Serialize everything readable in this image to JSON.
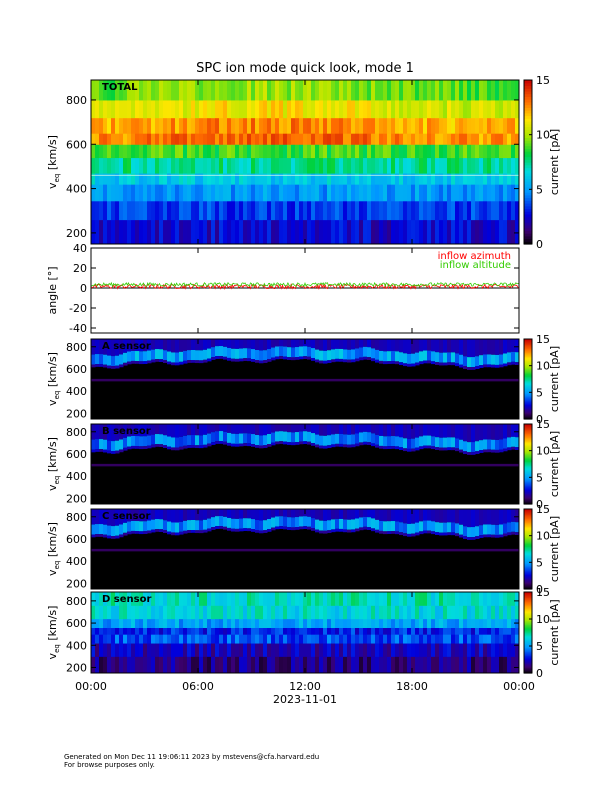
{
  "title": "SPC ion mode quick look, mode 1",
  "chart_data": [
    {
      "type": "heatmap",
      "panel_label": "TOTAL",
      "ylabel_main": "v",
      "ylabel_sub": "eq",
      "ylabel_unit": "[km/s]",
      "ylim": [
        150,
        890
      ],
      "yticks": [
        200,
        400,
        600,
        800
      ],
      "colorbar": {
        "label": "current [pA]",
        "range": [
          0,
          15
        ],
        "ticks": [
          0,
          5,
          10,
          15
        ]
      },
      "x_ticks": [
        "00:00",
        "06:00",
        "12:00",
        "18:00",
        "00:00"
      ],
      "bands": [
        {
          "from": 150,
          "to": 260,
          "level": 2.5
        },
        {
          "from": 260,
          "to": 345,
          "level": 3.5
        },
        {
          "from": 345,
          "to": 420,
          "level": 5.0
        },
        {
          "from": 420,
          "to": 470,
          "level": 6.2
        },
        {
          "from": 470,
          "to": 540,
          "level": 7.5
        },
        {
          "from": 540,
          "to": 600,
          "level": 8.8
        },
        {
          "from": 600,
          "to": 650,
          "level": 12.5
        },
        {
          "from": 650,
          "to": 720,
          "level": 12.0
        },
        {
          "from": 720,
          "to": 800,
          "level": 10.5
        },
        {
          "from": 800,
          "to": 890,
          "level": 9.0
        }
      ]
    },
    {
      "type": "line",
      "ylabel": "angle [°]",
      "ylim": [
        -45,
        40
      ],
      "yticks": [
        -40,
        -20,
        0,
        20,
        40
      ],
      "x_ticks": [
        "00:00",
        "06:00",
        "12:00",
        "18:00",
        "00:00"
      ],
      "series": [
        {
          "name": "inflow azimuth",
          "color": "#ff0000",
          "mean": 1.5,
          "spread": 2.2
        },
        {
          "name": "inflow altitude",
          "color": "#33cc00",
          "mean": 3.5,
          "spread": 1.8
        }
      ],
      "zero_line": true
    },
    {
      "type": "heatmap",
      "panel_label": "A sensor",
      "ylabel_main": "v",
      "ylabel_sub": "eq",
      "ylabel_unit": "[km/s]",
      "ylim": [
        150,
        870
      ],
      "yticks": [
        200,
        400,
        600,
        800
      ],
      "colorbar": {
        "label": "current [pA]",
        "range": [
          0,
          15
        ],
        "ticks": [
          0,
          5,
          10,
          15
        ]
      },
      "beam_level": 4.5
    },
    {
      "type": "heatmap",
      "panel_label": "B sensor",
      "ylabel_main": "v",
      "ylabel_sub": "eq",
      "ylabel_unit": "[km/s]",
      "ylim": [
        150,
        870
      ],
      "yticks": [
        200,
        400,
        600,
        800
      ],
      "colorbar": {
        "label": "current [pA]",
        "range": [
          0,
          15
        ],
        "ticks": [
          0,
          5,
          10,
          15
        ]
      },
      "beam_level": 4.0
    },
    {
      "type": "heatmap",
      "panel_label": "C sensor",
      "ylabel_main": "v",
      "ylabel_sub": "eq",
      "ylabel_unit": "[km/s]",
      "ylim": [
        150,
        870
      ],
      "yticks": [
        200,
        400,
        600,
        800
      ],
      "colorbar": {
        "label": "current [pA]",
        "range": [
          0,
          15
        ],
        "ticks": [
          0,
          5,
          10,
          15
        ]
      },
      "beam_level": 4.2
    },
    {
      "type": "heatmap",
      "panel_label": "D sensor",
      "ylabel_main": "v",
      "ylabel_sub": "eq",
      "ylabel_unit": "[km/s]",
      "ylim": [
        150,
        880
      ],
      "yticks": [
        200,
        400,
        600,
        800
      ],
      "colorbar": {
        "label": "current [pA]",
        "range": [
          0,
          15
        ],
        "ticks": [
          0,
          5,
          10,
          15
        ]
      },
      "x_ticks": [
        "00:00",
        "06:00",
        "12:00",
        "18:00",
        "00:00"
      ],
      "xlabel": "2023-11-01"
    }
  ],
  "footer": {
    "line1": "Generated on Mon Dec 11 19:06:11 2023 by mstevens@cfa.harvard.edu",
    "line2": "For browse purposes only."
  }
}
